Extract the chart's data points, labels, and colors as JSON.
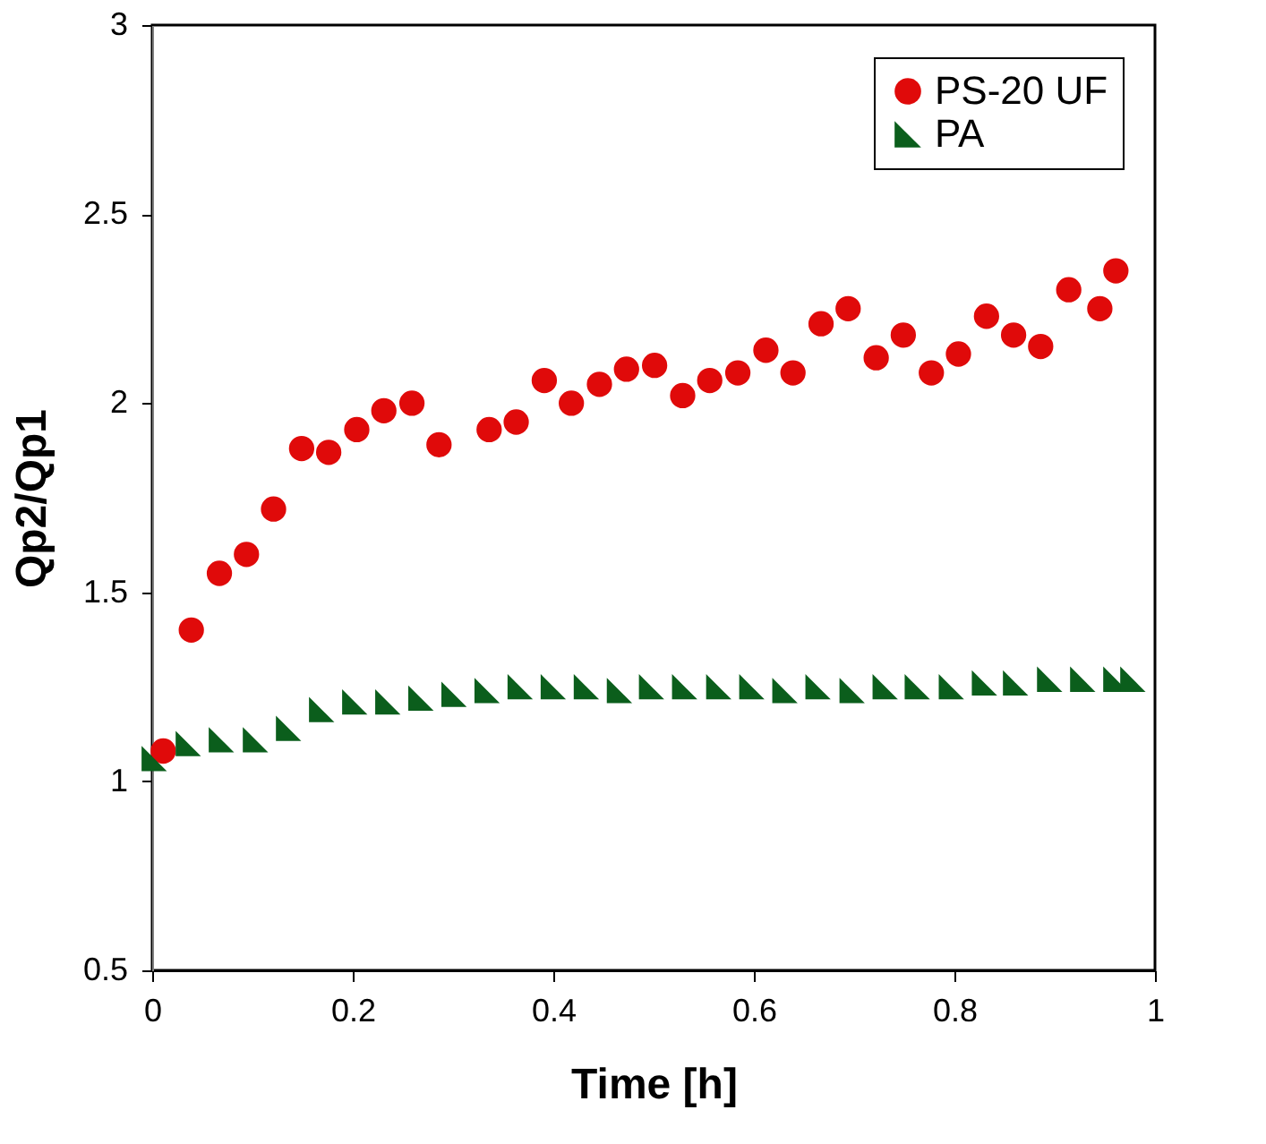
{
  "chart_data": {
    "type": "scatter",
    "xlabel": "Time [h]",
    "ylabel": "Qp2/Qp1",
    "xlim": [
      0,
      1
    ],
    "xticks": [
      0,
      0.2,
      0.4,
      0.6,
      0.8,
      1
    ],
    "ylim": [
      0.5,
      3
    ],
    "yticks": [
      0.5,
      1,
      1.5,
      2,
      2.5,
      3
    ],
    "grid": false,
    "legend": "top right",
    "series": [
      {
        "name": "PS-20 UF",
        "color": "#e00a0a",
        "marker": "circle",
        "x": [
          0.011,
          0.039,
          0.067,
          0.094,
          0.121,
          0.149,
          0.176,
          0.204,
          0.231,
          0.259,
          0.286,
          0.336,
          0.363,
          0.391,
          0.418,
          0.446,
          0.473,
          0.501,
          0.529,
          0.556,
          0.584,
          0.612,
          0.639,
          0.667,
          0.694,
          0.722,
          0.749,
          0.777,
          0.804,
          0.832,
          0.859,
          0.886,
          0.914,
          0.945,
          0.961
        ],
        "values": [
          1.08,
          1.4,
          1.55,
          1.6,
          1.72,
          1.88,
          1.87,
          1.93,
          1.98,
          2.0,
          1.89,
          1.93,
          1.95,
          2.06,
          2.0,
          2.05,
          2.09,
          2.1,
          2.02,
          2.06,
          2.08,
          2.14,
          2.08,
          2.21,
          2.25,
          2.12,
          2.18,
          2.08,
          2.13,
          2.23,
          2.18,
          2.15,
          2.3,
          2.25,
          2.35
        ]
      },
      {
        "name": "PA",
        "color": "#0b5e1c",
        "marker": "triangle",
        "x": [
          0.002,
          0.036,
          0.069,
          0.103,
          0.136,
          0.169,
          0.202,
          0.235,
          0.268,
          0.301,
          0.334,
          0.367,
          0.4,
          0.433,
          0.466,
          0.498,
          0.531,
          0.565,
          0.598,
          0.631,
          0.664,
          0.698,
          0.731,
          0.763,
          0.797,
          0.83,
          0.861,
          0.895,
          0.928,
          0.961,
          0.978
        ],
        "values": [
          1.06,
          1.1,
          1.11,
          1.11,
          1.14,
          1.19,
          1.21,
          1.21,
          1.22,
          1.23,
          1.24,
          1.25,
          1.25,
          1.25,
          1.24,
          1.25,
          1.25,
          1.25,
          1.25,
          1.24,
          1.25,
          1.24,
          1.25,
          1.25,
          1.25,
          1.26,
          1.26,
          1.27,
          1.27,
          1.27,
          1.27
        ]
      }
    ]
  }
}
